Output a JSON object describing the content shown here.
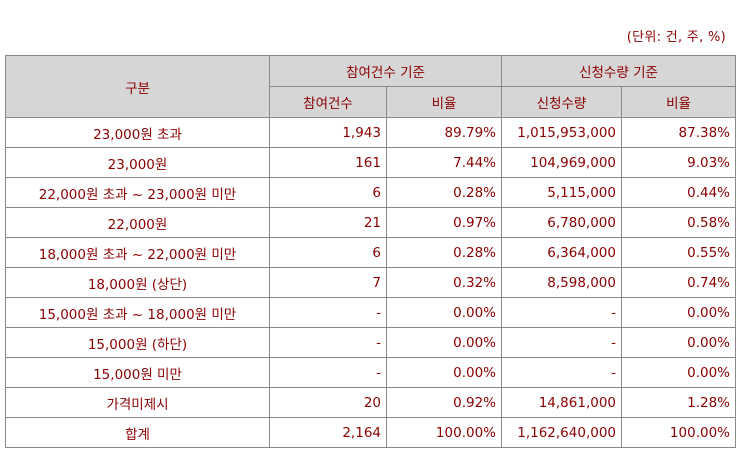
{
  "unit_note": "(단위: 건, 주, %)",
  "header": {
    "category": "구분",
    "group_participation": "참여건수 기준",
    "group_subscription": "신청수량 기준",
    "participation_count": "참여건수",
    "participation_ratio": "비율",
    "subscription_qty": "신청수량",
    "subscription_ratio": "비율"
  },
  "rows": [
    {
      "category": "23,000원 초과",
      "count": "1,943",
      "count_ratio": "89.79%",
      "qty": "1,015,953,000",
      "qty_ratio": "87.38%"
    },
    {
      "category": "23,000원",
      "count": "161",
      "count_ratio": "7.44%",
      "qty": "104,969,000",
      "qty_ratio": "9.03%"
    },
    {
      "category": "22,000원 초과 ~ 23,000원 미만",
      "count": "6",
      "count_ratio": "0.28%",
      "qty": "5,115,000",
      "qty_ratio": "0.44%"
    },
    {
      "category": "22,000원",
      "count": "21",
      "count_ratio": "0.97%",
      "qty": "6,780,000",
      "qty_ratio": "0.58%"
    },
    {
      "category": "18,000원 초과 ~ 22,000원 미만",
      "count": "6",
      "count_ratio": "0.28%",
      "qty": "6,364,000",
      "qty_ratio": "0.55%"
    },
    {
      "category": "18,000원 (상단)",
      "count": "7",
      "count_ratio": "0.32%",
      "qty": "8,598,000",
      "qty_ratio": "0.74%"
    },
    {
      "category": "15,000원 초과 ~ 18,000원 미만",
      "count": "-",
      "count_ratio": "0.00%",
      "qty": "-",
      "qty_ratio": "0.00%"
    },
    {
      "category": "15,000원 (하단)",
      "count": "-",
      "count_ratio": "0.00%",
      "qty": "-",
      "qty_ratio": "0.00%"
    },
    {
      "category": "15,000원 미만",
      "count": "-",
      "count_ratio": "0.00%",
      "qty": "-",
      "qty_ratio": "0.00%"
    },
    {
      "category": "가격미제시",
      "count": "20",
      "count_ratio": "0.92%",
      "qty": "14,861,000",
      "qty_ratio": "1.28%"
    },
    {
      "category": "합계",
      "count": "2,164",
      "count_ratio": "100.00%",
      "qty": "1,162,640,000",
      "qty_ratio": "100.00%"
    }
  ]
}
